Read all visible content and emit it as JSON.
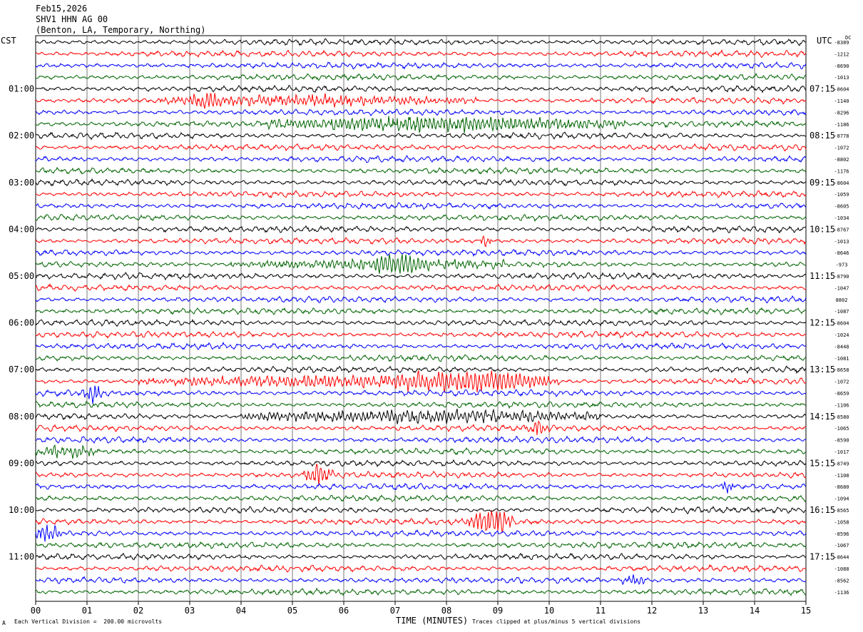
{
  "header": {
    "date": "Feb15,2026",
    "station": "SHV1 HHN AG 00",
    "location": "(Benton, LA, Temporary, Northing)"
  },
  "left_timezone": "CST",
  "right_timezone": "UTC",
  "dc_label": "DC",
  "footer": {
    "mark": "A",
    "scale": "Each Vertical Division =  200.00 microvolts",
    "clip": "Traces clipped at plus/minus 5 vertical divisions"
  },
  "colors": {
    "trace_cycle": [
      "#000000",
      "#ff0000",
      "#0000ff",
      "#006400"
    ],
    "grid": "#555555"
  },
  "chart_data": {
    "type": "line",
    "title": "Feb15,2026 SHV1 HHN AG 00 (Benton, LA, Temporary, Northing)",
    "xlabel": "TIME (MINUTES)",
    "xlim": [
      0,
      15
    ],
    "x_ticks": [
      "00",
      "01",
      "02",
      "03",
      "04",
      "05",
      "06",
      "07",
      "08",
      "09",
      "10",
      "11",
      "12",
      "13",
      "14",
      "15"
    ],
    "trace_count": 48,
    "traces_per_hour": 4,
    "left_hour_labels": [
      "01:00",
      "02:00",
      "03:00",
      "04:00",
      "05:00",
      "06:00",
      "07:00",
      "08:00",
      "09:00",
      "10:00",
      "11:00"
    ],
    "right_hour_labels": [
      "07:15",
      "08:15",
      "09:15",
      "10:15",
      "11:15",
      "12:15",
      "13:15",
      "14:15",
      "15:15",
      "16:15",
      "17:15"
    ],
    "dc_offsets": [
      "-8389",
      "-1212",
      "-8690",
      "-1013",
      "-8604",
      "-1140",
      "-8296",
      "-1186",
      "-8778",
      "-1072",
      "-8802",
      "-1176",
      "-8604",
      "-1059",
      "-8605",
      "-1034",
      "-8767",
      "-1013",
      "-8646",
      "-973",
      "-8790",
      "-1047",
      "8802",
      "-1087",
      "-8604",
      "-1024",
      "-8448",
      "-1081",
      "-8658",
      "-1072",
      "-8659",
      "-1106",
      "-8580",
      "-1065",
      "-8590",
      "-1017",
      "-8749",
      "-1108",
      "-8680",
      "-1094",
      "-8565",
      "-1058",
      "-8596",
      "-1067",
      "-8644",
      "-1088",
      "-8562",
      "-1136"
    ],
    "events": [
      {
        "trace": 5,
        "start": 2.4,
        "end": 8.6,
        "amp": 1.4
      },
      {
        "trace": 5,
        "start": 3.0,
        "end": 3.6,
        "amp": 1.6
      },
      {
        "trace": 7,
        "start": 4.5,
        "end": 11.5,
        "amp": 2.2
      },
      {
        "trace": 17,
        "start": 8.65,
        "end": 8.85,
        "amp": 2.0
      },
      {
        "trace": 19,
        "start": 6.6,
        "end": 7.6,
        "amp": 2.2
      },
      {
        "trace": 19,
        "start": 3.8,
        "end": 9.2,
        "amp": 1.3
      },
      {
        "trace": 29,
        "start": 2.0,
        "end": 10.2,
        "amp": 1.6
      },
      {
        "trace": 29,
        "start": 7.0,
        "end": 10.0,
        "amp": 2.4
      },
      {
        "trace": 30,
        "start": 0.9,
        "end": 1.3,
        "amp": 2.4
      },
      {
        "trace": 32,
        "start": 4.0,
        "end": 11.0,
        "amp": 1.8
      },
      {
        "trace": 33,
        "start": 9.5,
        "end": 10.0,
        "amp": 2.0
      },
      {
        "trace": 35,
        "start": 0.0,
        "end": 1.2,
        "amp": 1.8
      },
      {
        "trace": 37,
        "start": 5.2,
        "end": 5.8,
        "amp": 3.2
      },
      {
        "trace": 38,
        "start": 13.3,
        "end": 13.6,
        "amp": 1.5
      },
      {
        "trace": 41,
        "start": 8.4,
        "end": 9.3,
        "amp": 3.8
      },
      {
        "trace": 42,
        "start": 0.0,
        "end": 0.5,
        "amp": 2.6
      },
      {
        "trace": 46,
        "start": 11.4,
        "end": 11.9,
        "amp": 1.5
      }
    ]
  }
}
